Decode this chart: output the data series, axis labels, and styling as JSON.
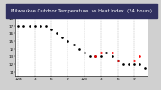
{
  "title": "Milwaukee Outdoor Temperature  vs Heat Index  (24 Hours)",
  "title_fontsize": 3.8,
  "title_color": "black",
  "plot_bg_color": "#ffffff",
  "hours": [
    0,
    1,
    2,
    3,
    4,
    5,
    6,
    7,
    8,
    9,
    10,
    11,
    12,
    13,
    14,
    15,
    16,
    17,
    18,
    19,
    20,
    21,
    22,
    23
  ],
  "temp_vals": [
    17.0,
    17.0,
    17.0,
    17.0,
    17.0,
    17.0,
    16.5,
    16.0,
    15.5,
    15.0,
    14.5,
    14.0,
    13.5,
    13.0,
    13.0,
    13.0,
    13.5,
    13.0,
    12.5,
    12.0,
    12.0,
    12.0,
    12.0,
    11.5
  ],
  "heat_vals": [
    null,
    null,
    null,
    null,
    null,
    null,
    null,
    null,
    null,
    null,
    null,
    null,
    null,
    null,
    13.0,
    13.5,
    null,
    13.5,
    12.5,
    null,
    null,
    12.5,
    13.0,
    null
  ],
  "temp_color": "#000000",
  "heat_color": "#ff0000",
  "grid_color": "#aaaaaa",
  "ylim_min": 10.5,
  "ylim_max": 18.5,
  "yticks": [
    11,
    12,
    13,
    14,
    15,
    16,
    17,
    18
  ],
  "ytick_labels": [
    "11",
    "12",
    "13",
    "14",
    "15",
    "16",
    "17",
    "18"
  ],
  "xticks": [
    0,
    3,
    6,
    9,
    12,
    15,
    18,
    21
  ],
  "xtick_labels": [
    "12a",
    "3",
    "6",
    "9",
    "12p",
    "3",
    "6",
    "9"
  ],
  "tick_fontsize": 3.0,
  "marker_size": 1.8,
  "outer_bg": "#d0d0d0",
  "title_bg": "#303060"
}
